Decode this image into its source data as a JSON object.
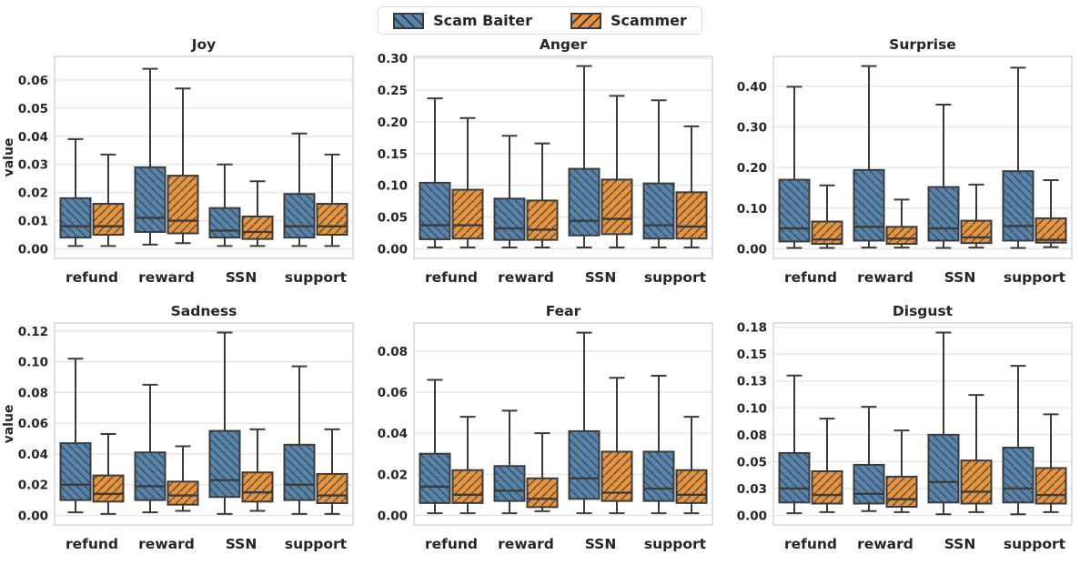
{
  "legend": {
    "items": [
      {
        "label": "Scam Baiter",
        "color": "#5585ae",
        "hatch": "backslash"
      },
      {
        "label": "Scammer",
        "color": "#e8933e",
        "hatch": "slash"
      }
    ]
  },
  "colors": {
    "box_edge": "#3b3b3b",
    "hatch_line": "#3f3f3f",
    "grid_line": "#e4e4e8",
    "spine": "#d2d2d8",
    "text": "#262626"
  },
  "chart_data": [
    {
      "type": "box",
      "title": "Joy",
      "ylabel": "value",
      "categories": [
        "refund",
        "reward",
        "SSN",
        "support"
      ],
      "ylim": [
        -0.0034,
        0.0684
      ],
      "yticks": [
        0,
        0.01,
        0.02,
        0.03,
        0.04,
        0.05,
        0.06
      ],
      "ytick_labels": [
        "0.00",
        "0.01",
        "0.02",
        "0.03",
        "0.04",
        "0.05",
        "0.06"
      ],
      "series": [
        {
          "name": "Scam Baiter",
          "boxes": [
            {
              "lo": 0.001,
              "q1": 0.004,
              "med": 0.008,
              "q3": 0.018,
              "hi": 0.039
            },
            {
              "lo": 0.0015,
              "q1": 0.006,
              "med": 0.011,
              "q3": 0.029,
              "hi": 0.064
            },
            {
              "lo": 0.001,
              "q1": 0.004,
              "med": 0.0065,
              "q3": 0.0145,
              "hi": 0.03
            },
            {
              "lo": 0.001,
              "q1": 0.004,
              "med": 0.008,
              "q3": 0.0195,
              "hi": 0.041
            }
          ]
        },
        {
          "name": "Scammer",
          "boxes": [
            {
              "lo": 0.001,
              "q1": 0.005,
              "med": 0.008,
              "q3": 0.016,
              "hi": 0.0335
            },
            {
              "lo": 0.002,
              "q1": 0.0055,
              "med": 0.01,
              "q3": 0.026,
              "hi": 0.057
            },
            {
              "lo": 0.001,
              "q1": 0.0035,
              "med": 0.006,
              "q3": 0.0115,
              "hi": 0.024
            },
            {
              "lo": 0.001,
              "q1": 0.005,
              "med": 0.008,
              "q3": 0.016,
              "hi": 0.0335
            }
          ]
        }
      ]
    },
    {
      "type": "box",
      "title": "Anger",
      "ylabel": "",
      "categories": [
        "refund",
        "reward",
        "SSN",
        "support"
      ],
      "ylim": [
        -0.0152,
        0.3032
      ],
      "yticks": [
        0,
        0.05,
        0.1,
        0.15,
        0.2,
        0.25,
        0.3
      ],
      "ytick_labels": [
        "0.00",
        "0.05",
        "0.10",
        "0.15",
        "0.20",
        "0.25",
        "0.30"
      ],
      "series": [
        {
          "name": "Scam Baiter",
          "boxes": [
            {
              "lo": 0.002,
              "q1": 0.015,
              "med": 0.037,
              "q3": 0.104,
              "hi": 0.237
            },
            {
              "lo": 0.002,
              "q1": 0.014,
              "med": 0.032,
              "q3": 0.079,
              "hi": 0.178
            },
            {
              "lo": 0.002,
              "q1": 0.021,
              "med": 0.044,
              "q3": 0.126,
              "hi": 0.288
            },
            {
              "lo": 0.002,
              "q1": 0.016,
              "med": 0.037,
              "q3": 0.103,
              "hi": 0.234
            }
          ]
        },
        {
          "name": "Scammer",
          "boxes": [
            {
              "lo": 0.002,
              "q1": 0.016,
              "med": 0.037,
              "q3": 0.093,
              "hi": 0.206
            },
            {
              "lo": 0.002,
              "q1": 0.014,
              "med": 0.03,
              "q3": 0.076,
              "hi": 0.166
            },
            {
              "lo": 0.002,
              "q1": 0.023,
              "med": 0.047,
              "q3": 0.109,
              "hi": 0.241
            },
            {
              "lo": 0.002,
              "q1": 0.016,
              "med": 0.035,
              "q3": 0.089,
              "hi": 0.193
            }
          ]
        }
      ]
    },
    {
      "type": "box",
      "title": "Surprise",
      "ylabel": "",
      "categories": [
        "refund",
        "reward",
        "SSN",
        "support"
      ],
      "ylim": [
        -0.0237,
        0.4737
      ],
      "yticks": [
        0,
        0.1,
        0.2,
        0.3,
        0.4
      ],
      "ytick_labels": [
        "0.00",
        "0.10",
        "0.20",
        "0.30",
        "0.40"
      ],
      "series": [
        {
          "name": "Scam Baiter",
          "boxes": [
            {
              "lo": 0.002,
              "q1": 0.018,
              "med": 0.05,
              "q3": 0.17,
              "hi": 0.399
            },
            {
              "lo": 0.003,
              "q1": 0.02,
              "med": 0.054,
              "q3": 0.194,
              "hi": 0.45
            },
            {
              "lo": 0.002,
              "q1": 0.02,
              "med": 0.05,
              "q3": 0.152,
              "hi": 0.355
            },
            {
              "lo": 0.002,
              "q1": 0.02,
              "med": 0.056,
              "q3": 0.191,
              "hi": 0.446
            }
          ]
        },
        {
          "name": "Scammer",
          "boxes": [
            {
              "lo": 0.002,
              "q1": 0.012,
              "med": 0.023,
              "q3": 0.067,
              "hi": 0.156
            },
            {
              "lo": 0.003,
              "q1": 0.012,
              "med": 0.025,
              "q3": 0.054,
              "hi": 0.121
            },
            {
              "lo": 0.003,
              "q1": 0.014,
              "med": 0.028,
              "q3": 0.069,
              "hi": 0.158
            },
            {
              "lo": 0.004,
              "q1": 0.015,
              "med": 0.022,
              "q3": 0.075,
              "hi": 0.169
            }
          ]
        }
      ]
    },
    {
      "type": "box",
      "title": "Sadness",
      "ylabel": "value",
      "categories": [
        "refund",
        "reward",
        "SSN",
        "support"
      ],
      "ylim": [
        -0.0062,
        0.1252
      ],
      "yticks": [
        0,
        0.02,
        0.04,
        0.06,
        0.08,
        0.1,
        0.12
      ],
      "ytick_labels": [
        "0.00",
        "0.02",
        "0.04",
        "0.06",
        "0.08",
        "0.10",
        "0.12"
      ],
      "series": [
        {
          "name": "Scam Baiter",
          "boxes": [
            {
              "lo": 0.002,
              "q1": 0.01,
              "med": 0.02,
              "q3": 0.047,
              "hi": 0.102
            },
            {
              "lo": 0.002,
              "q1": 0.01,
              "med": 0.019,
              "q3": 0.041,
              "hi": 0.085
            },
            {
              "lo": 0.001,
              "q1": 0.012,
              "med": 0.023,
              "q3": 0.055,
              "hi": 0.119
            },
            {
              "lo": 0.001,
              "q1": 0.01,
              "med": 0.02,
              "q3": 0.046,
              "hi": 0.097
            }
          ]
        },
        {
          "name": "Scammer",
          "boxes": [
            {
              "lo": 0.001,
              "q1": 0.009,
              "med": 0.014,
              "q3": 0.026,
              "hi": 0.053
            },
            {
              "lo": 0.003,
              "q1": 0.007,
              "med": 0.013,
              "q3": 0.022,
              "hi": 0.045
            },
            {
              "lo": 0.003,
              "q1": 0.009,
              "med": 0.015,
              "q3": 0.028,
              "hi": 0.056
            },
            {
              "lo": 0.001,
              "q1": 0.008,
              "med": 0.013,
              "q3": 0.027,
              "hi": 0.056
            }
          ]
        }
      ]
    },
    {
      "type": "box",
      "title": "Fear",
      "ylabel": "",
      "categories": [
        "refund",
        "reward",
        "SSN",
        "support"
      ],
      "ylim": [
        -0.0047,
        0.0937
      ],
      "yticks": [
        0,
        0.02,
        0.04,
        0.06,
        0.08
      ],
      "ytick_labels": [
        "0.00",
        "0.02",
        "0.04",
        "0.06",
        "0.08"
      ],
      "series": [
        {
          "name": "Scam Baiter",
          "boxes": [
            {
              "lo": 0.001,
              "q1": 0.006,
              "med": 0.014,
              "q3": 0.03,
              "hi": 0.066
            },
            {
              "lo": 0.001,
              "q1": 0.007,
              "med": 0.012,
              "q3": 0.024,
              "hi": 0.051
            },
            {
              "lo": 0.001,
              "q1": 0.008,
              "med": 0.018,
              "q3": 0.041,
              "hi": 0.089
            },
            {
              "lo": 0.001,
              "q1": 0.007,
              "med": 0.013,
              "q3": 0.031,
              "hi": 0.068
            }
          ]
        },
        {
          "name": "Scammer",
          "boxes": [
            {
              "lo": 0.001,
              "q1": 0.006,
              "med": 0.01,
              "q3": 0.022,
              "hi": 0.048
            },
            {
              "lo": 0.002,
              "q1": 0.004,
              "med": 0.008,
              "q3": 0.018,
              "hi": 0.04
            },
            {
              "lo": 0.001,
              "q1": 0.007,
              "med": 0.011,
              "q3": 0.031,
              "hi": 0.067
            },
            {
              "lo": 0.001,
              "q1": 0.006,
              "med": 0.01,
              "q3": 0.022,
              "hi": 0.048
            }
          ]
        }
      ]
    },
    {
      "type": "box",
      "title": "Disgust",
      "ylabel": "",
      "categories": [
        "refund",
        "reward",
        "SSN",
        "support"
      ],
      "ylim": [
        -0.0089,
        0.1789
      ],
      "yticks": [
        0,
        0.025,
        0.05,
        0.075,
        0.1,
        0.125,
        0.15,
        0.175
      ],
      "ytick_labels": [
        "0.00",
        "0.03",
        "0.05",
        "0.08",
        "0.10",
        "0.13",
        "0.15",
        "0.18"
      ],
      "series": [
        {
          "name": "Scam Baiter",
          "boxes": [
            {
              "lo": 0.002,
              "q1": 0.012,
              "med": 0.025,
              "q3": 0.058,
              "hi": 0.13
            },
            {
              "lo": 0.004,
              "q1": 0.011,
              "med": 0.02,
              "q3": 0.047,
              "hi": 0.101
            },
            {
              "lo": 0.001,
              "q1": 0.012,
              "med": 0.031,
              "q3": 0.075,
              "hi": 0.17
            },
            {
              "lo": 0.001,
              "q1": 0.012,
              "med": 0.025,
              "q3": 0.063,
              "hi": 0.139
            }
          ]
        },
        {
          "name": "Scammer",
          "boxes": [
            {
              "lo": 0.003,
              "q1": 0.011,
              "med": 0.019,
              "q3": 0.041,
              "hi": 0.09
            },
            {
              "lo": 0.003,
              "q1": 0.008,
              "med": 0.015,
              "q3": 0.036,
              "hi": 0.079
            },
            {
              "lo": 0.003,
              "q1": 0.011,
              "med": 0.022,
              "q3": 0.051,
              "hi": 0.112
            },
            {
              "lo": 0.003,
              "q1": 0.011,
              "med": 0.019,
              "q3": 0.044,
              "hi": 0.094
            }
          ]
        }
      ]
    }
  ]
}
